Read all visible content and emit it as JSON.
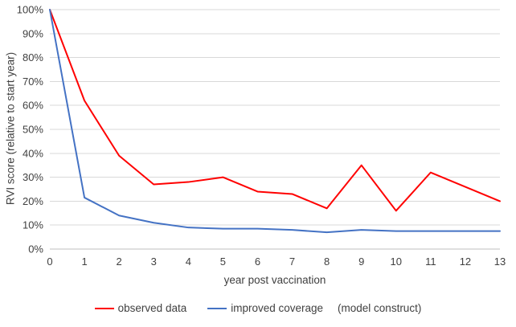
{
  "chart_data": {
    "type": "line",
    "x": [
      0,
      1,
      2,
      3,
      4,
      5,
      6,
      7,
      8,
      9,
      10,
      11,
      12,
      13
    ],
    "series": [
      {
        "name": "observed data",
        "color": "#ff0000",
        "values": [
          100,
          62,
          39,
          27,
          28,
          30,
          24,
          23,
          17,
          35,
          16,
          32,
          26,
          20
        ]
      },
      {
        "name": "improved coverage",
        "color": "#4472c4",
        "values": [
          100,
          21.5,
          14,
          11,
          9,
          8.5,
          8.5,
          8,
          7,
          8,
          7.5,
          7.5,
          7.5,
          7.5
        ]
      }
    ],
    "title": "",
    "xlabel": "year post vaccination",
    "ylabel": "RVI score (relative to start year)",
    "ylim": [
      0,
      100
    ],
    "ytick_step": 10,
    "ytick_format": "percent",
    "grid": true,
    "legend_position": "bottom",
    "legend_note": "(model construct)",
    "grid_color": "#d9d9d9",
    "axis_color": "#bfbfbf",
    "tick_text_color": "#404040"
  }
}
